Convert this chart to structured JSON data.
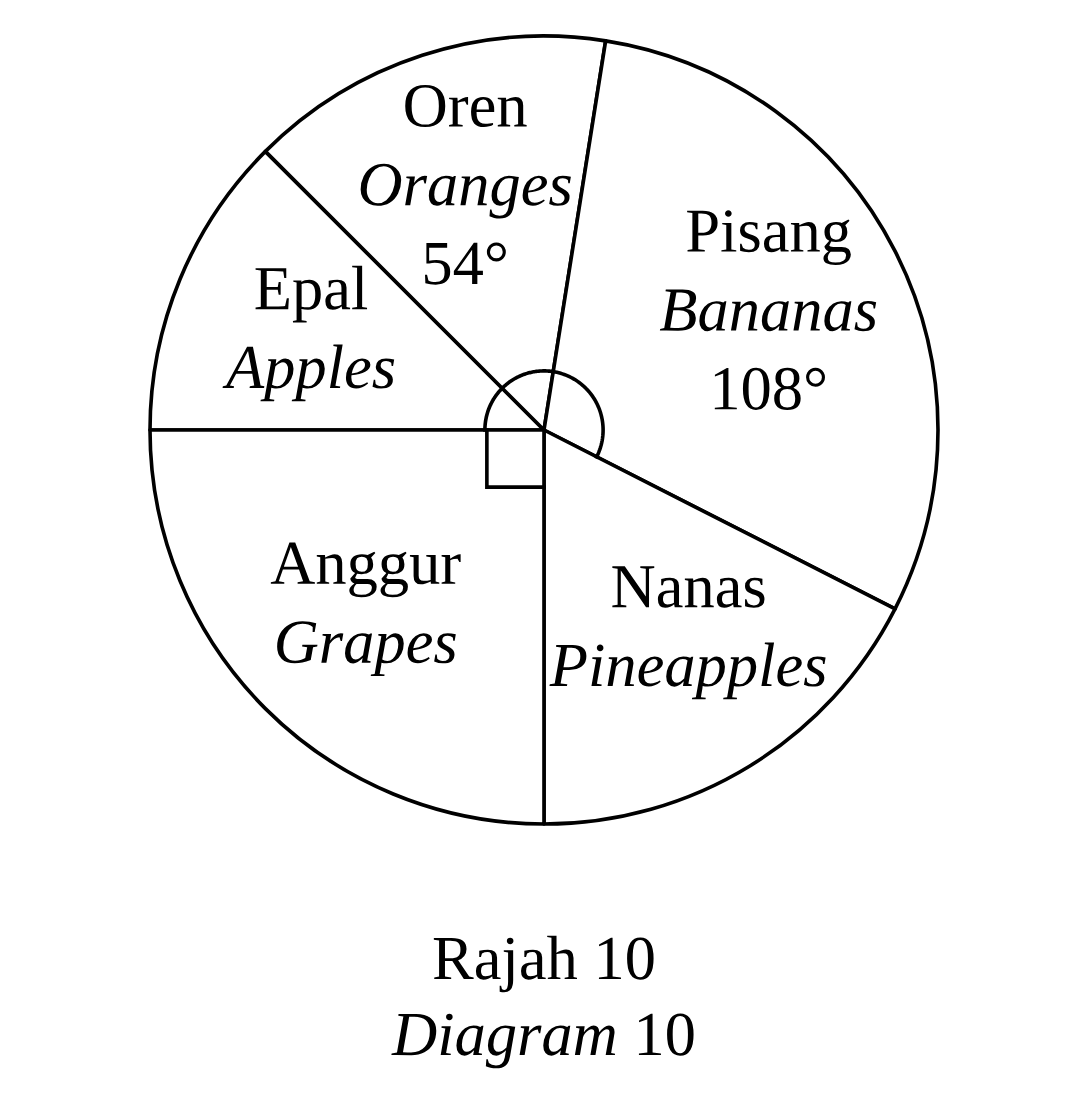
{
  "chart_data": {
    "type": "pie",
    "title": "Rajah 10",
    "subtitle": "Diagram 10",
    "categories": [
      "Epal\nApples",
      "Oren\nOranges",
      "Pisang\nBananas",
      "Nanas\nPineapples",
      "Anggur\nGrapes"
    ],
    "values": [
      45,
      54,
      108,
      63,
      90
    ],
    "value_labels": [
      null,
      "54°",
      "108°",
      null,
      null
    ],
    "colors": [
      "#ffffff",
      "#ffffff",
      "#ffffff",
      "#ffffff",
      "#ffffff"
    ]
  }
}
